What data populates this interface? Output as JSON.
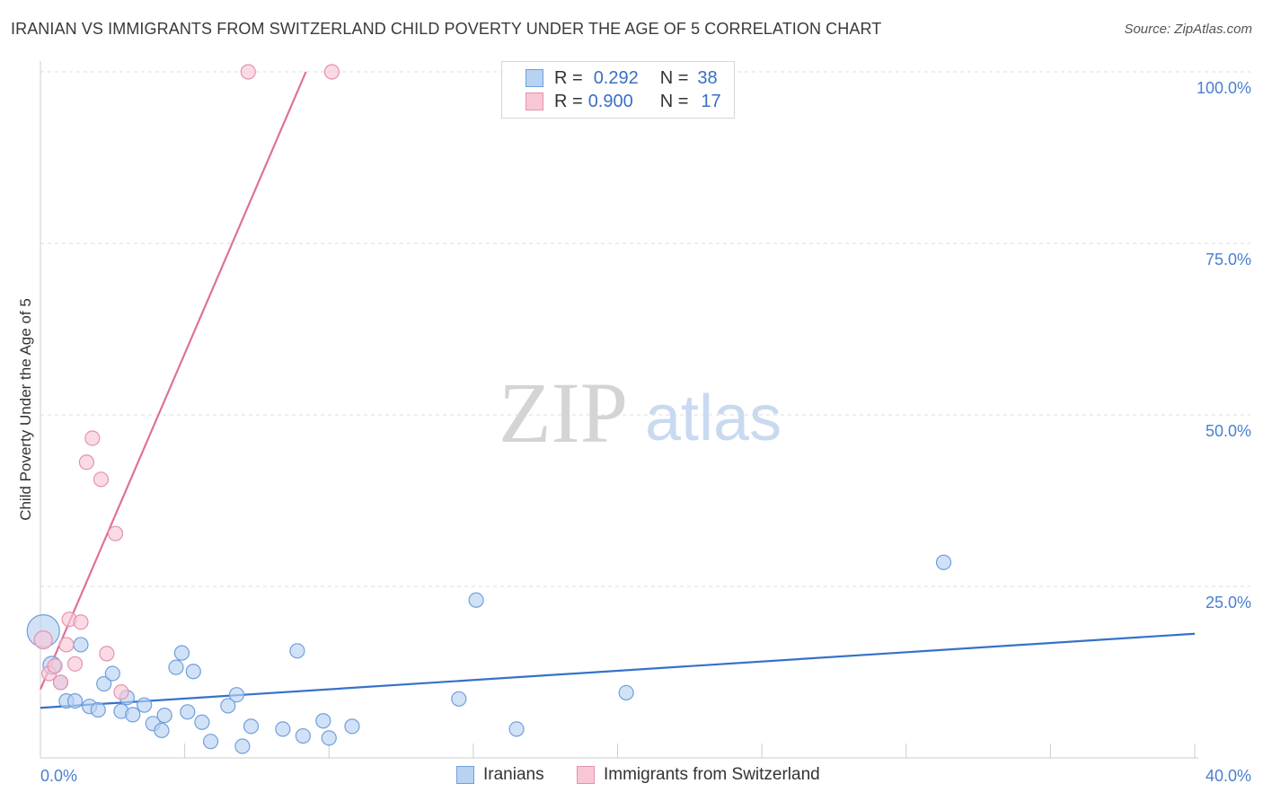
{
  "header": {
    "title": "IRANIAN VS IMMIGRANTS FROM SWITZERLAND CHILD POVERTY UNDER THE AGE OF 5 CORRELATION CHART",
    "source": "Source: ZipAtlas.com"
  },
  "legend": {
    "rows": [
      {
        "r_label": "R =",
        "r_value": "0.292",
        "n_label": "N =",
        "n_value": "38"
      },
      {
        "r_label": "R =",
        "r_value": "0.900",
        "n_label": "N =",
        "n_value": "17"
      }
    ]
  },
  "bottom_legend": {
    "series_a": "Iranians",
    "series_b": "Immigrants from Switzerland"
  },
  "watermark": {
    "zip": "ZIP",
    "atlas": "atlas"
  },
  "colors": {
    "blue_fill": "#b8d2f2",
    "blue_stroke": "#6f9fdc",
    "blue_line": "#3672c8",
    "pink_fill": "#f8c7d5",
    "pink_stroke": "#e591ad",
    "pink_line": "#e0709a",
    "tick_text": "#4a7fd0",
    "grid": "#dddddd"
  },
  "chart_data": {
    "type": "scatter",
    "title": "IRANIAN VS IMMIGRANTS FROM SWITZERLAND CHILD POVERTY UNDER THE AGE OF 5 CORRELATION CHART",
    "xlabel": "",
    "ylabel": "Child Poverty Under the Age of 5",
    "xlim": [
      0,
      40
    ],
    "ylim": [
      0,
      100
    ],
    "x_tick_labels": [
      {
        "value": 0,
        "label": "0.0%"
      },
      {
        "value": 40,
        "label": "40.0%"
      }
    ],
    "y_tick_labels": [
      {
        "value": 25,
        "label": "25.0%"
      },
      {
        "value": 50,
        "label": "50.0%"
      },
      {
        "value": 75,
        "label": "75.0%"
      },
      {
        "value": 100,
        "label": "100.0%"
      }
    ],
    "series": [
      {
        "name": "Iranians",
        "color": "blue",
        "points": [
          {
            "x": 0.1,
            "y": 18.5,
            "size": 18
          },
          {
            "x": 0.4,
            "y": 13.5,
            "size": 10
          },
          {
            "x": 0.7,
            "y": 11.0,
            "size": 8
          },
          {
            "x": 0.9,
            "y": 8.3,
            "size": 8
          },
          {
            "x": 1.2,
            "y": 8.3,
            "size": 8
          },
          {
            "x": 1.4,
            "y": 16.5,
            "size": 8
          },
          {
            "x": 1.7,
            "y": 7.5,
            "size": 8
          },
          {
            "x": 2.0,
            "y": 7.0,
            "size": 8
          },
          {
            "x": 2.2,
            "y": 10.8,
            "size": 8
          },
          {
            "x": 2.5,
            "y": 12.3,
            "size": 8
          },
          {
            "x": 2.8,
            "y": 6.8,
            "size": 8
          },
          {
            "x": 3.0,
            "y": 8.8,
            "size": 8
          },
          {
            "x": 3.2,
            "y": 6.3,
            "size": 8
          },
          {
            "x": 3.6,
            "y": 7.7,
            "size": 8
          },
          {
            "x": 3.9,
            "y": 5.0,
            "size": 8
          },
          {
            "x": 4.2,
            "y": 4.0,
            "size": 8
          },
          {
            "x": 4.3,
            "y": 6.2,
            "size": 8
          },
          {
            "x": 4.7,
            "y": 13.2,
            "size": 8
          },
          {
            "x": 4.9,
            "y": 15.3,
            "size": 8
          },
          {
            "x": 5.1,
            "y": 6.7,
            "size": 8
          },
          {
            "x": 5.3,
            "y": 12.6,
            "size": 8
          },
          {
            "x": 5.6,
            "y": 5.2,
            "size": 8
          },
          {
            "x": 5.9,
            "y": 2.4,
            "size": 8
          },
          {
            "x": 6.5,
            "y": 7.6,
            "size": 8
          },
          {
            "x": 6.8,
            "y": 9.2,
            "size": 8
          },
          {
            "x": 7.0,
            "y": 1.7,
            "size": 8
          },
          {
            "x": 7.3,
            "y": 4.6,
            "size": 8
          },
          {
            "x": 8.4,
            "y": 4.2,
            "size": 8
          },
          {
            "x": 8.9,
            "y": 15.6,
            "size": 8
          },
          {
            "x": 9.1,
            "y": 3.2,
            "size": 8
          },
          {
            "x": 9.8,
            "y": 5.4,
            "size": 8
          },
          {
            "x": 10.0,
            "y": 2.9,
            "size": 8
          },
          {
            "x": 10.8,
            "y": 4.6,
            "size": 8
          },
          {
            "x": 14.5,
            "y": 8.6,
            "size": 8
          },
          {
            "x": 15.1,
            "y": 23.0,
            "size": 8
          },
          {
            "x": 16.5,
            "y": 4.2,
            "size": 8
          },
          {
            "x": 20.3,
            "y": 9.5,
            "size": 8
          },
          {
            "x": 31.3,
            "y": 28.5,
            "size": 8
          }
        ],
        "trendline": {
          "x": [
            0,
            40
          ],
          "y": [
            7.3,
            18.1
          ]
        }
      },
      {
        "name": "Immigrants from Switzerland",
        "color": "pink",
        "points": [
          {
            "x": 0.1,
            "y": 17.2,
            "size": 10
          },
          {
            "x": 0.3,
            "y": 12.3,
            "size": 8
          },
          {
            "x": 0.5,
            "y": 13.4,
            "size": 8
          },
          {
            "x": 0.7,
            "y": 11.0,
            "size": 8
          },
          {
            "x": 0.9,
            "y": 16.5,
            "size": 8
          },
          {
            "x": 1.0,
            "y": 20.2,
            "size": 8
          },
          {
            "x": 1.2,
            "y": 13.7,
            "size": 8
          },
          {
            "x": 1.4,
            "y": 19.8,
            "size": 8
          },
          {
            "x": 1.6,
            "y": 43.1,
            "size": 8
          },
          {
            "x": 1.8,
            "y": 46.6,
            "size": 8
          },
          {
            "x": 2.1,
            "y": 40.6,
            "size": 8
          },
          {
            "x": 2.3,
            "y": 15.2,
            "size": 8
          },
          {
            "x": 2.6,
            "y": 32.7,
            "size": 8
          },
          {
            "x": 2.8,
            "y": 9.6,
            "size": 8
          },
          {
            "x": 7.2,
            "y": 100.0,
            "size": 8
          },
          {
            "x": 10.1,
            "y": 100.0,
            "size": 8
          },
          {
            "x": 2.0,
            "y": 40.3,
            "size": 0
          }
        ],
        "trendline": {
          "x": [
            0,
            9.2
          ],
          "y": [
            10.0,
            100.0
          ]
        }
      }
    ]
  }
}
